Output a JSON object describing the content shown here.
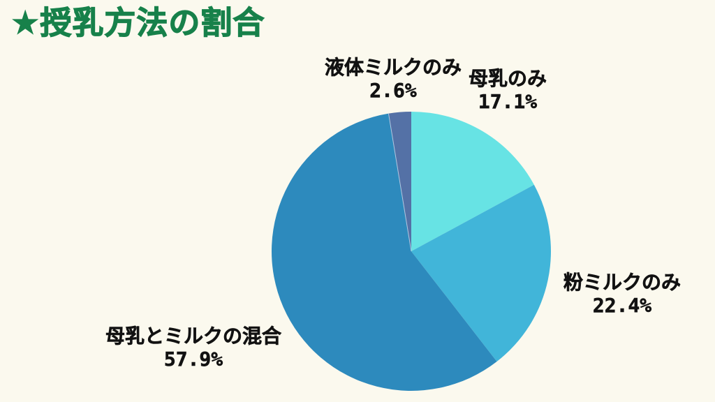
{
  "header": {
    "title": "★授乳方法の割合",
    "title_color": "#17814A"
  },
  "page": {
    "background_color": "#FBF9EE",
    "label_text_color": "#121212"
  },
  "chart_data": {
    "type": "pie",
    "title": "★授乳方法の割合",
    "start_angle_deg": 0,
    "direction": "clockwise",
    "legend": "none",
    "labels_position": "outside",
    "total": 100.0,
    "slices": [
      {
        "label": "母乳のみ",
        "value": 17.1,
        "display": "17.1%",
        "color": "#67E3E4"
      },
      {
        "label": "粉ミルクのみ",
        "value": 22.4,
        "display": "22.4%",
        "color": "#41B5D9"
      },
      {
        "label": "母乳とミルクの混合",
        "value": 57.9,
        "display": "57.9%",
        "color": "#2D8ABD"
      },
      {
        "label": "液体ミルクのみ",
        "value": 2.6,
        "display": "2.6%",
        "color": "#5471A6"
      }
    ],
    "divider_after_index": 2,
    "divider_color": "rgba(190,205,228,0.9)"
  }
}
